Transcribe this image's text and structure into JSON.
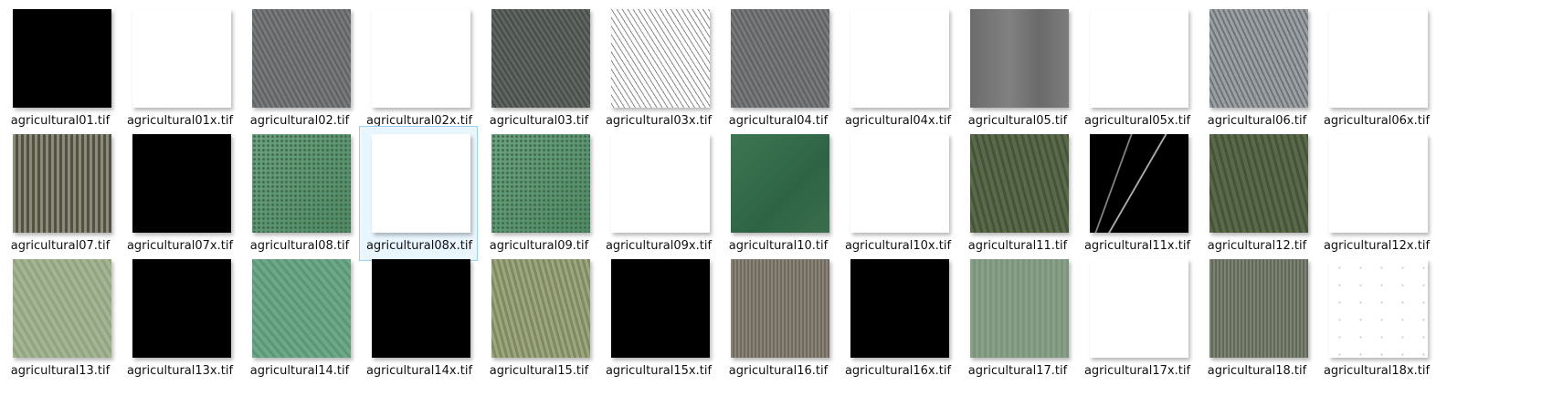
{
  "files": [
    {
      "name": "agricultural01.tif",
      "thumb": "black"
    },
    {
      "name": "agricultural01x.tif",
      "thumb": "white"
    },
    {
      "name": "agricultural02.tif",
      "thumb": "aerial-gray-rows"
    },
    {
      "name": "agricultural02x.tif",
      "thumb": "white"
    },
    {
      "name": "agricultural03.tif",
      "thumb": "aerial-darkgray-rows"
    },
    {
      "name": "agricultural03x.tif",
      "thumb": "white-speckled"
    },
    {
      "name": "agricultural04.tif",
      "thumb": "aerial-gray-rows"
    },
    {
      "name": "agricultural04x.tif",
      "thumb": "white"
    },
    {
      "name": "agricultural05.tif",
      "thumb": "aerial-gray-blur"
    },
    {
      "name": "agricultural05x.tif",
      "thumb": "white"
    },
    {
      "name": "agricultural06.tif",
      "thumb": "aerial-lightgray-rows"
    },
    {
      "name": "agricultural06x.tif",
      "thumb": "white"
    },
    {
      "name": "agricultural07.tif",
      "thumb": "aerial-dotted-rows"
    },
    {
      "name": "agricultural07x.tif",
      "thumb": "black"
    },
    {
      "name": "agricultural08.tif",
      "thumb": "aerial-green-dotted"
    },
    {
      "name": "agricultural08x.tif",
      "thumb": "white",
      "selected": true
    },
    {
      "name": "agricultural09.tif",
      "thumb": "aerial-green-dotted"
    },
    {
      "name": "agricultural09x.tif",
      "thumb": "white"
    },
    {
      "name": "agricultural10.tif",
      "thumb": "aerial-dark-green"
    },
    {
      "name": "agricultural10x.tif",
      "thumb": "white"
    },
    {
      "name": "agricultural11.tif",
      "thumb": "aerial-olive-rows"
    },
    {
      "name": "agricultural11x.tif",
      "thumb": "black-streaks"
    },
    {
      "name": "agricultural12.tif",
      "thumb": "aerial-olive-rows"
    },
    {
      "name": "agricultural12x.tif",
      "thumb": "white"
    },
    {
      "name": "agricultural13.tif",
      "thumb": "aerial-pale-green"
    },
    {
      "name": "agricultural13x.tif",
      "thumb": "black"
    },
    {
      "name": "agricultural14.tif",
      "thumb": "aerial-teal-green"
    },
    {
      "name": "agricultural14x.tif",
      "thumb": "black"
    },
    {
      "name": "agricultural15.tif",
      "thumb": "aerial-khaki-rows"
    },
    {
      "name": "agricultural15x.tif",
      "thumb": "black"
    },
    {
      "name": "agricultural16.tif",
      "thumb": "aerial-brown-gray"
    },
    {
      "name": "agricultural16x.tif",
      "thumb": "black"
    },
    {
      "name": "agricultural17.tif",
      "thumb": "aerial-soft-green"
    },
    {
      "name": "agricultural17x.tif",
      "thumb": "white"
    },
    {
      "name": "agricultural18.tif",
      "thumb": "aerial-gray-green"
    },
    {
      "name": "agricultural18x.tif",
      "thumb": "white-dots"
    }
  ],
  "colors": {
    "selection_border": "#99d1ff",
    "selection_fill": "#eaf6ff"
  }
}
